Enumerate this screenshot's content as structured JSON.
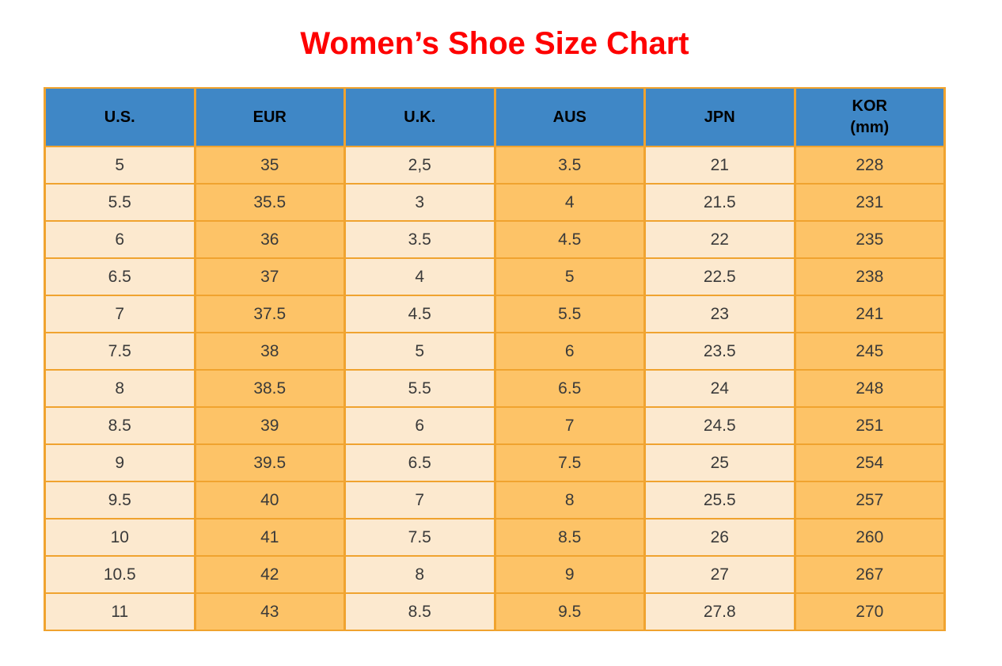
{
  "page": {
    "background": "#FFFFFF"
  },
  "title": {
    "text": "Women’s Shoe Size Chart",
    "color": "#FE0000"
  },
  "table": {
    "headers": [
      {
        "label": "U.S."
      },
      {
        "label": "EUR"
      },
      {
        "label": "U.K."
      },
      {
        "label": "AUS"
      },
      {
        "label": "JPN"
      },
      {
        "label": "KOR",
        "sub": "(mm)"
      }
    ],
    "colors": {
      "header_bg": "#3F87C6",
      "header_text": "#000000",
      "column_light": "#FCE9CF",
      "column_orange": "#FDC367",
      "border": "#F0A32F",
      "body_text": "#3A3A3A"
    }
  },
  "chart_data": {
    "type": "table",
    "title": "Women’s Shoe Size Chart",
    "columns": [
      "U.S.",
      "EUR",
      "U.K.",
      "AUS",
      "JPN",
      "KOR (mm)"
    ],
    "rows": [
      [
        "5",
        "35",
        "2,5",
        "3.5",
        "21",
        "228"
      ],
      [
        "5.5",
        "35.5",
        "3",
        "4",
        "21.5",
        "231"
      ],
      [
        "6",
        "36",
        "3.5",
        "4.5",
        "22",
        "235"
      ],
      [
        "6.5",
        "37",
        "4",
        "5",
        "22.5",
        "238"
      ],
      [
        "7",
        "37.5",
        "4.5",
        "5.5",
        "23",
        "241"
      ],
      [
        "7.5",
        "38",
        "5",
        "6",
        "23.5",
        "245"
      ],
      [
        "8",
        "38.5",
        "5.5",
        "6.5",
        "24",
        "248"
      ],
      [
        "8.5",
        "39",
        "6",
        "7",
        "24.5",
        "251"
      ],
      [
        "9",
        "39.5",
        "6.5",
        "7.5",
        "25",
        "254"
      ],
      [
        "9.5",
        "40",
        "7",
        "8",
        "25.5",
        "257"
      ],
      [
        "10",
        "41",
        "7.5",
        "8.5",
        "26",
        "260"
      ],
      [
        "10.5",
        "42",
        "8",
        "9",
        "27",
        "267"
      ],
      [
        "11",
        "43",
        "8.5",
        "9.5",
        "27.8",
        "270"
      ]
    ]
  }
}
